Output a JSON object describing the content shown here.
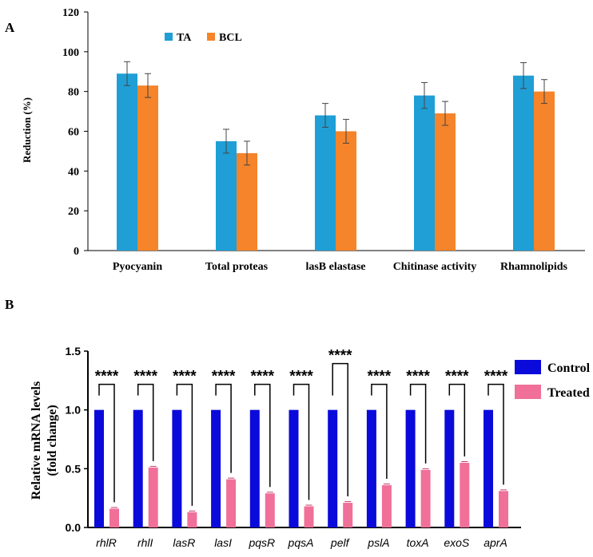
{
  "chart_data": [
    {
      "type": "bar",
      "panel_label": "A",
      "title": "",
      "xlabel": "",
      "ylabel": "Reduction (%)",
      "ylim": [
        0,
        120
      ],
      "yticks": [
        0,
        20,
        40,
        60,
        80,
        100,
        120
      ],
      "grid": false,
      "legend_position": "top-left",
      "categories": [
        "Pyocyanin",
        "Total proteas",
        "lasB elastase",
        "Chitinase activity",
        "Rhamnolipids"
      ],
      "series": [
        {
          "name": "TA",
          "color": "#1f9fd6",
          "values": [
            89,
            55,
            68,
            78,
            88
          ],
          "errors": [
            6,
            6,
            6,
            6.5,
            6.5
          ]
        },
        {
          "name": "BCL",
          "color": "#f5842a",
          "values": [
            83,
            49,
            60,
            69,
            80
          ],
          "errors": [
            6,
            6,
            6,
            6,
            6
          ]
        }
      ]
    },
    {
      "type": "bar",
      "panel_label": "B",
      "title": "",
      "xlabel": "",
      "ylabel": "Relative mRNA levels",
      "ylabel_line2": "(fold change)",
      "ylim": [
        0,
        1.5
      ],
      "yticks": [
        0.0,
        0.5,
        1.0,
        1.5
      ],
      "grid": false,
      "legend_position": "right",
      "categories": [
        "rhlR",
        "rhlI",
        "lasR",
        "lasI",
        "pqsR",
        "pqsA",
        "pelf",
        "pslA",
        "toxA",
        "exoS",
        "aprA"
      ],
      "series": [
        {
          "name": "Control",
          "color": "#0a0adb",
          "values": [
            1,
            1,
            1,
            1,
            1,
            1,
            1,
            1,
            1,
            1,
            1
          ]
        },
        {
          "name": "Treated",
          "color": "#f0709a",
          "values": [
            0.16,
            0.51,
            0.13,
            0.41,
            0.29,
            0.18,
            0.21,
            0.36,
            0.49,
            0.55,
            0.31
          ],
          "errors": [
            0.01,
            0.01,
            0.01,
            0.01,
            0.01,
            0.01,
            0.01,
            0.01,
            0.01,
            0.01,
            0.01
          ]
        }
      ],
      "annotations": [
        "****",
        "****",
        "****",
        "****",
        "****",
        "****",
        "****",
        "****",
        "****",
        "****",
        "****"
      ]
    }
  ]
}
